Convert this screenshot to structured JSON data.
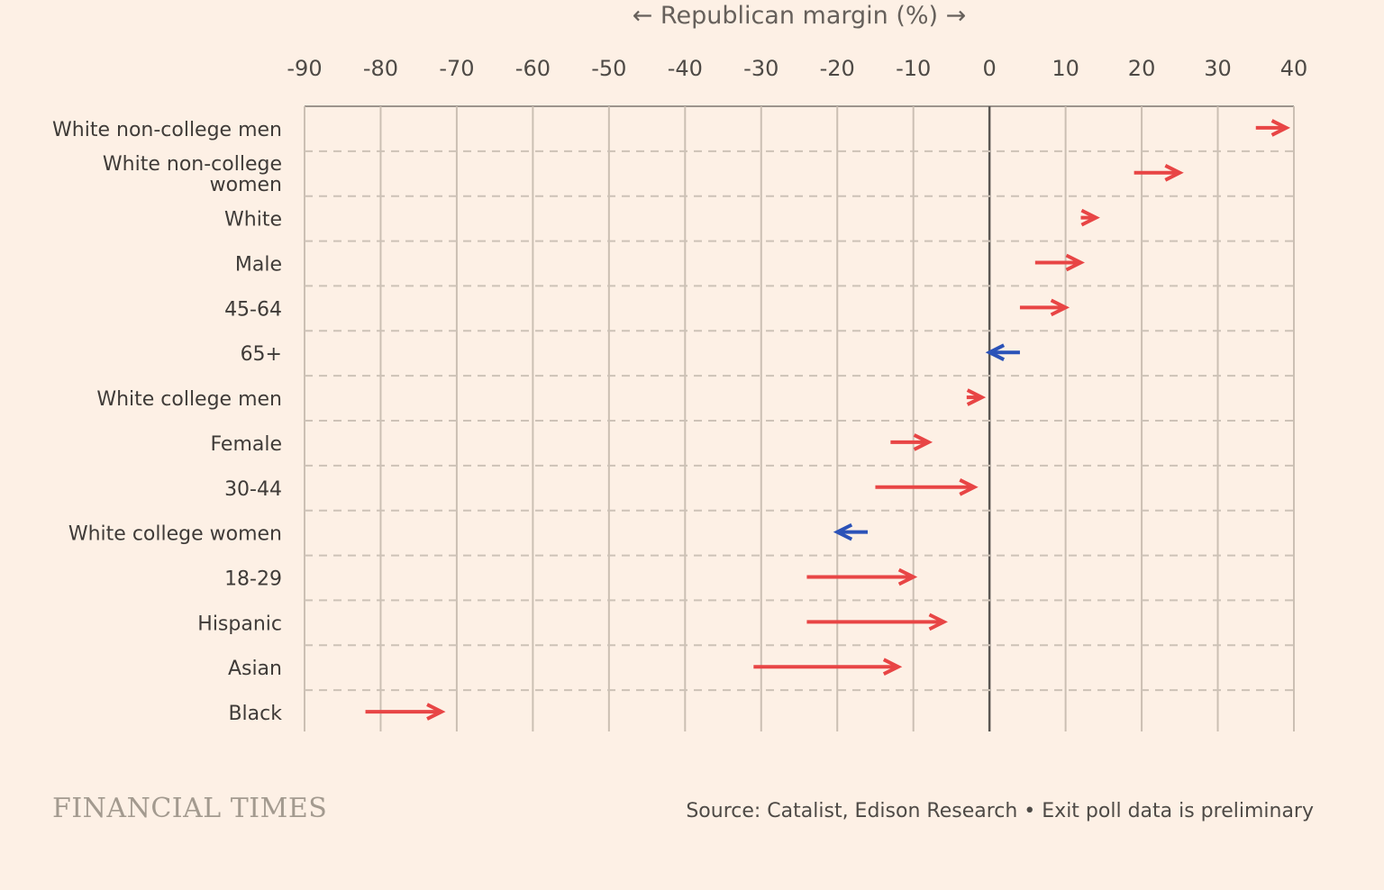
{
  "chart_data": {
    "type": "arrow",
    "title": "← Republican margin (%) →",
    "xlim": [
      -90,
      40
    ],
    "xticks": [
      -90,
      -80,
      -70,
      -60,
      -50,
      -40,
      -30,
      -20,
      -10,
      0,
      10,
      20,
      30,
      40
    ],
    "grid": true,
    "rows": [
      {
        "label": "White non-college men",
        "from": 35,
        "to": 39
      },
      {
        "label": "White non-college women",
        "from": 19,
        "to": 25
      },
      {
        "label": "White",
        "from": 12,
        "to": 14
      },
      {
        "label": "Male",
        "from": 6,
        "to": 12
      },
      {
        "label": "45-64",
        "from": 4,
        "to": 10
      },
      {
        "label": "65+",
        "from": 4,
        "to": 0
      },
      {
        "label": "White college men",
        "from": -3,
        "to": -1
      },
      {
        "label": "Female",
        "from": -13,
        "to": -8
      },
      {
        "label": "30-44",
        "from": -15,
        "to": -2
      },
      {
        "label": "White college women",
        "from": -16,
        "to": -20
      },
      {
        "label": "18-29",
        "from": -24,
        "to": -10
      },
      {
        "label": "Hispanic",
        "from": -24,
        "to": -6
      },
      {
        "label": "Asian",
        "from": -31,
        "to": -12
      },
      {
        "label": "Black",
        "from": -82,
        "to": -72
      }
    ],
    "colors": {
      "rightward": "#e84545",
      "leftward": "#2b52b8"
    }
  },
  "footer": {
    "logo": "FINANCIAL TIMES",
    "source": "Source: Catalist, Edison Research • Exit poll data is preliminary"
  }
}
